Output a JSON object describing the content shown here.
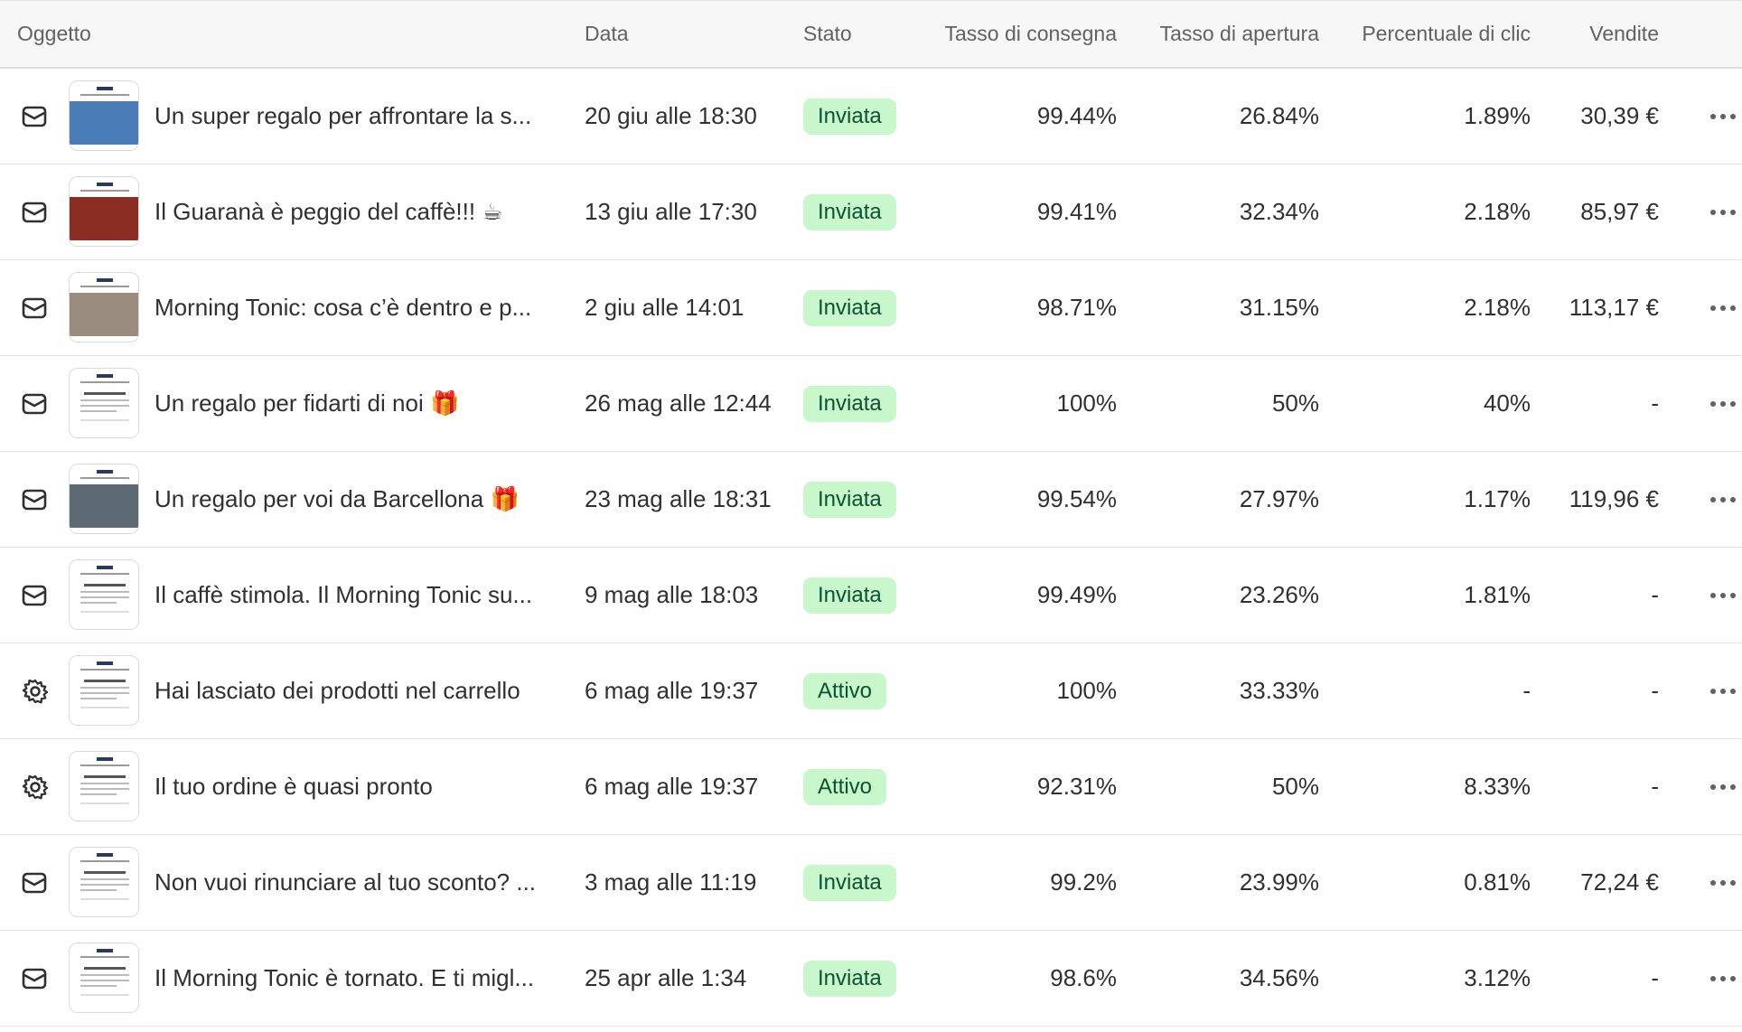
{
  "table": {
    "columns": [
      "Oggetto",
      "Data",
      "Stato",
      "Tasso di consegna",
      "Tasso di apertura",
      "Percentuale di clic",
      "Vendite"
    ],
    "rows": [
      {
        "icon": "email",
        "subject": "Un super regalo per affrontare la s...",
        "date": "20 giu alle 18:30",
        "status": "Inviata",
        "delivery": "99.44%",
        "open": "26.84%",
        "click": "1.89%",
        "sales": "30,39 €"
      },
      {
        "icon": "email",
        "subject": "Il Guaranà è peggio del caffè!!! ☕",
        "date": "13 giu alle 17:30",
        "status": "Inviata",
        "delivery": "99.41%",
        "open": "32.34%",
        "click": "2.18%",
        "sales": "85,97 €"
      },
      {
        "icon": "email",
        "subject": "Morning Tonic: cosa c’è dentro e p...",
        "date": "2 giu alle 14:01",
        "status": "Inviata",
        "delivery": "98.71%",
        "open": "31.15%",
        "click": "2.18%",
        "sales": "113,17 €"
      },
      {
        "icon": "email",
        "subject": "Un regalo per fidarti di noi 🎁",
        "date": "26 mag alle 12:44",
        "status": "Inviata",
        "delivery": "100%",
        "open": "50%",
        "click": "40%",
        "sales": "-"
      },
      {
        "icon": "email",
        "subject": "Un regalo per voi da Barcellona 🎁",
        "date": "23 mag alle 18:31",
        "status": "Inviata",
        "delivery": "99.54%",
        "open": "27.97%",
        "click": "1.17%",
        "sales": "119,96 €"
      },
      {
        "icon": "email",
        "subject": "Il caffè stimola. Il Morning Tonic su...",
        "date": "9 mag alle 18:03",
        "status": "Inviata",
        "delivery": "99.49%",
        "open": "23.26%",
        "click": "1.81%",
        "sales": "-"
      },
      {
        "icon": "automation",
        "subject": "Hai lasciato dei prodotti nel carrello",
        "date": "6 mag alle 19:37",
        "status": "Attivo",
        "delivery": "100%",
        "open": "33.33%",
        "click": "-",
        "sales": "-"
      },
      {
        "icon": "automation",
        "subject": "Il tuo ordine è quasi pronto",
        "date": "6 mag alle 19:37",
        "status": "Attivo",
        "delivery": "92.31%",
        "open": "50%",
        "click": "8.33%",
        "sales": "-"
      },
      {
        "icon": "email",
        "subject": "Non vuoi rinunciare al tuo sconto? ...",
        "date": "3 mag alle 11:19",
        "status": "Inviata",
        "delivery": "99.2%",
        "open": "23.99%",
        "click": "0.81%",
        "sales": "72,24 €"
      },
      {
        "icon": "email",
        "subject": "Il Morning Tonic è tornato. E ti migl...",
        "date": "25 apr alle 1:34",
        "status": "Inviata",
        "delivery": "98.6%",
        "open": "34.56%",
        "click": "3.12%",
        "sales": "-"
      }
    ]
  }
}
